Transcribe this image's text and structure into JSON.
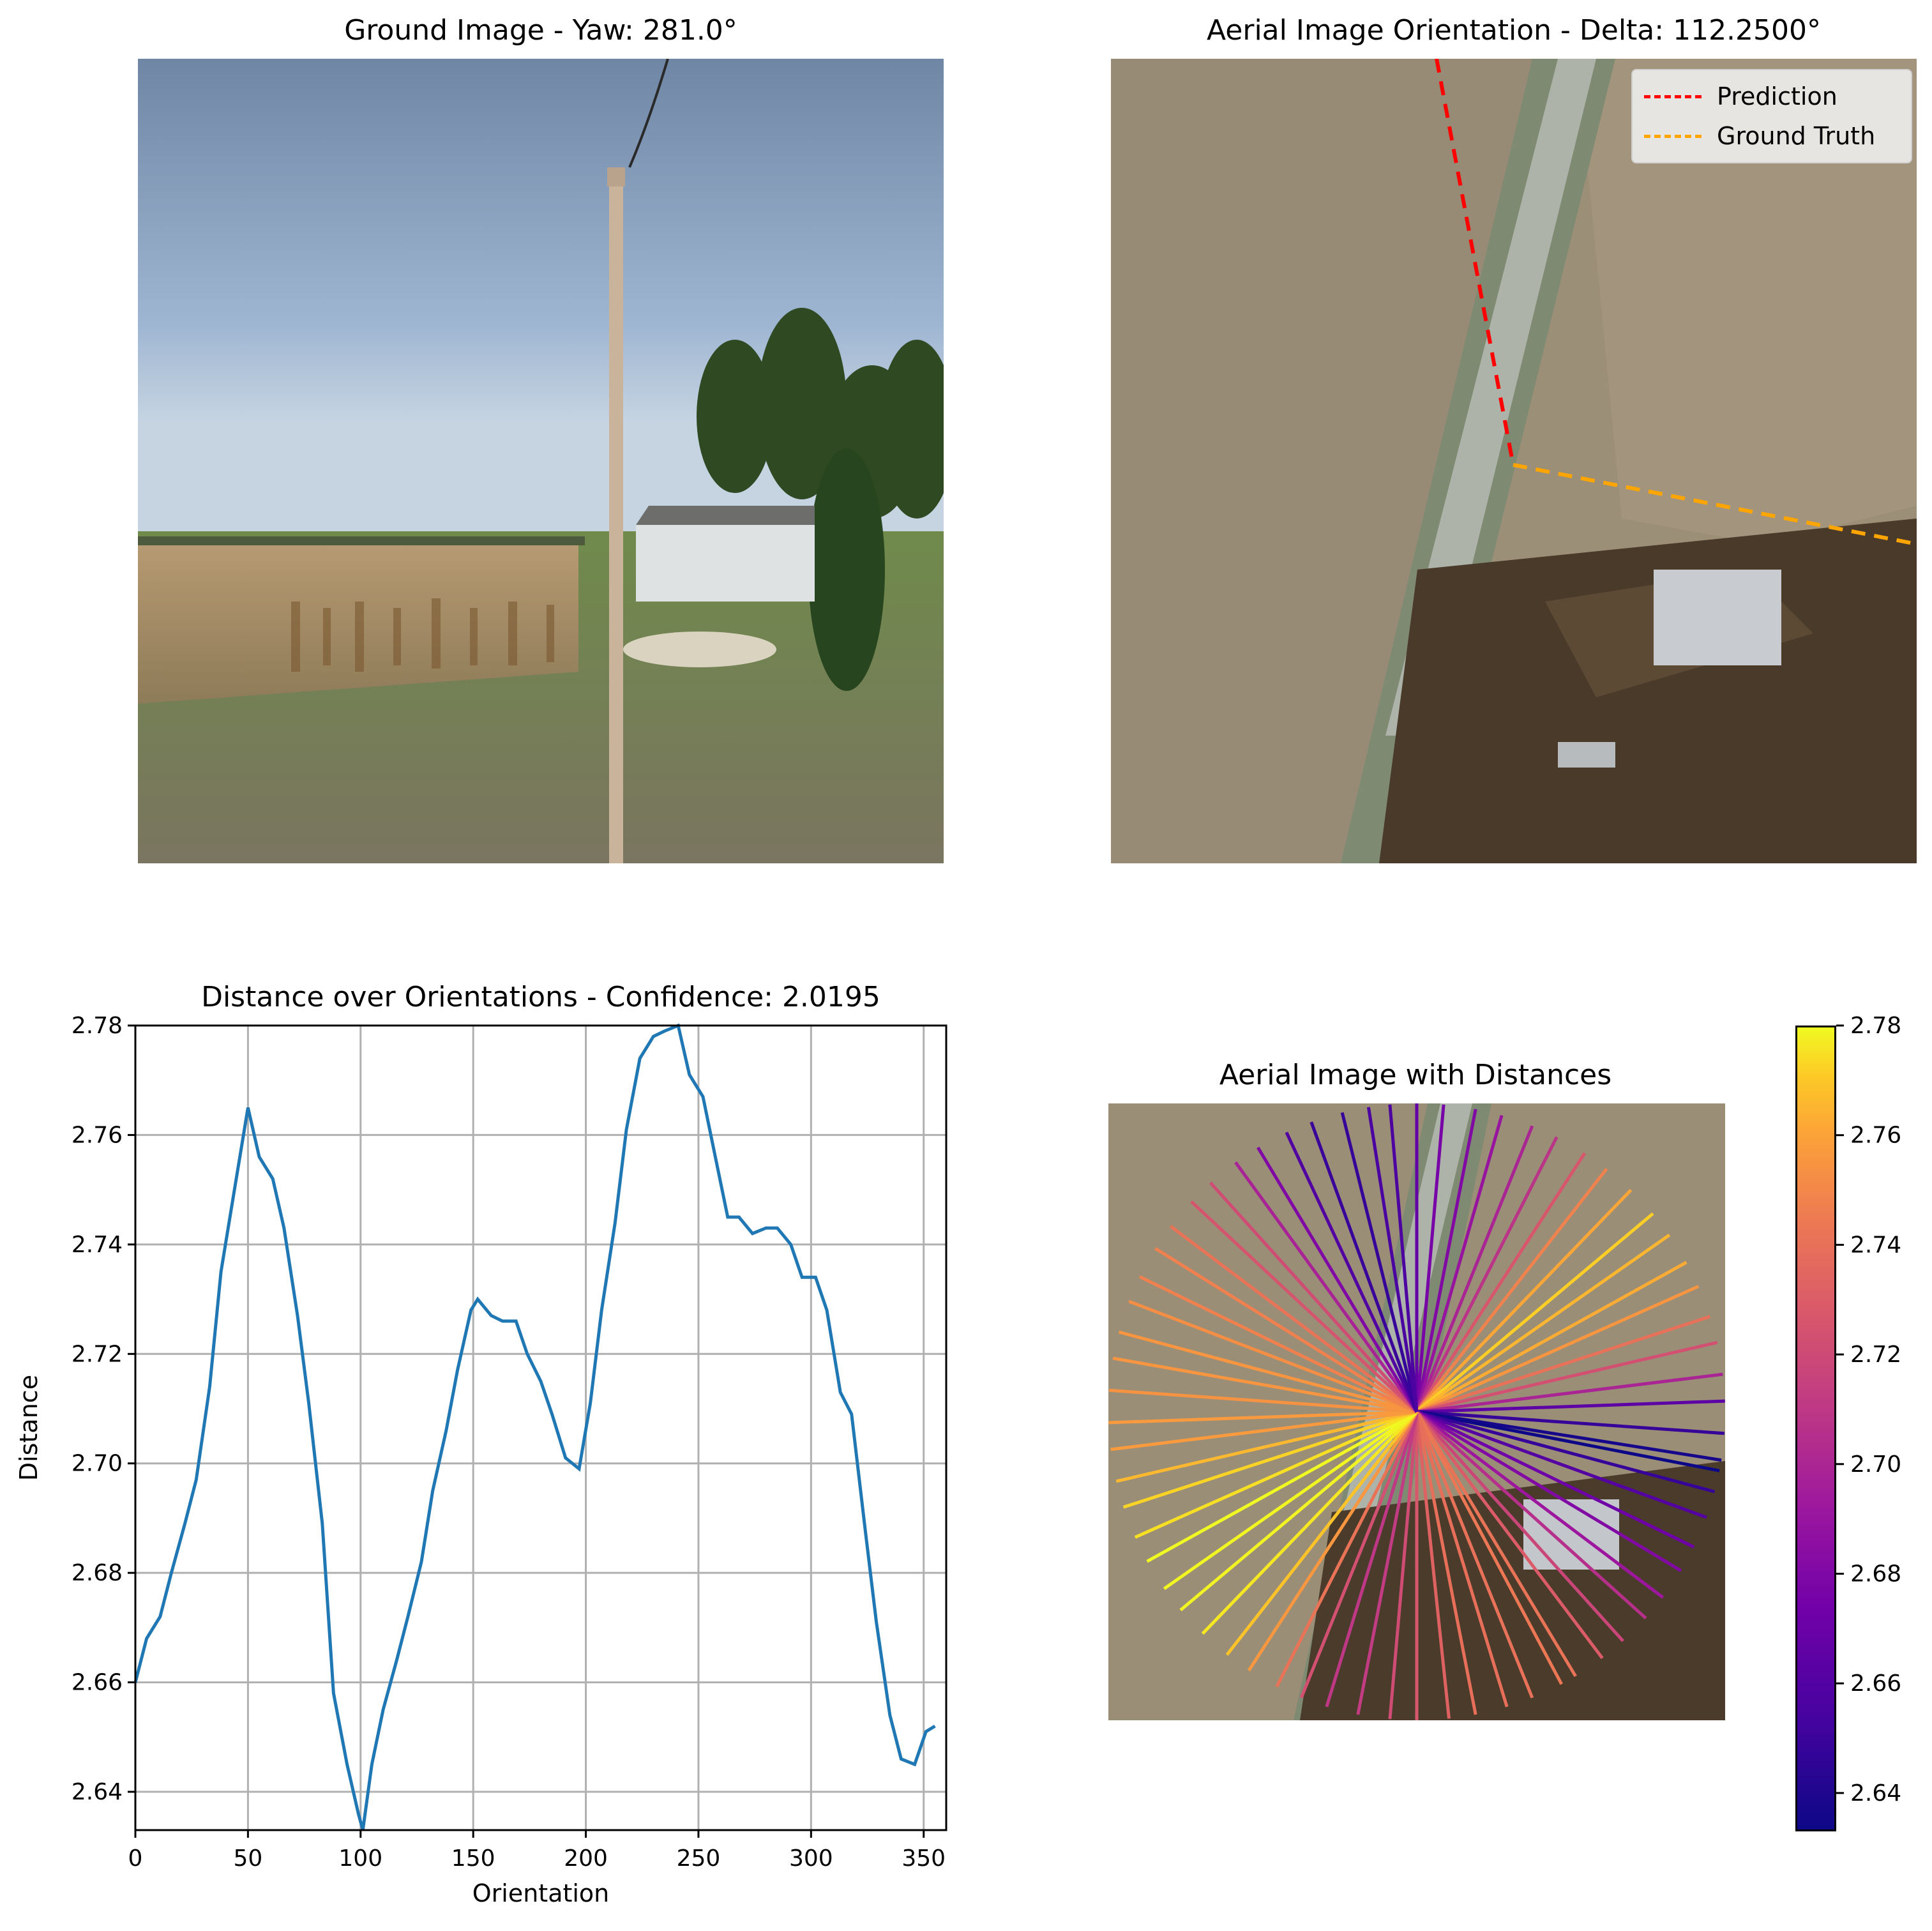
{
  "panels": {
    "ground": {
      "title": "Ground Image - Yaw: 281.0°"
    },
    "aerial": {
      "title": "Aerial Image Orientation - Delta: 112.2500°",
      "legend": [
        {
          "label": "Prediction",
          "color": "#ff0000"
        },
        {
          "label": "Ground Truth",
          "color": "#ffa500"
        }
      ]
    },
    "distances": {
      "title": "Aerial Image with Distances"
    }
  },
  "colors": {
    "line": "#1f77b4",
    "grid": "#b0b0b0",
    "prediction": "#ff0000",
    "ground_truth": "#ffa500"
  },
  "chart_data": [
    {
      "type": "line",
      "title": "Distance over Orientations - Confidence: 2.0195",
      "xlabel": "Orientation",
      "ylabel": "Distance",
      "xlim": [
        0,
        360
      ],
      "ylim": [
        2.633,
        2.78
      ],
      "grid": true,
      "xticks": [
        "0",
        "50",
        "100",
        "150",
        "200",
        "250",
        "300",
        "350"
      ],
      "yticks": [
        "2.64",
        "2.66",
        "2.68",
        "2.70",
        "2.72",
        "2.74",
        "2.76",
        "2.78"
      ],
      "series": [
        {
          "x": [
            0,
            5,
            11,
            16,
            22,
            27,
            33,
            38,
            44,
            50,
            55,
            61,
            66,
            72,
            77,
            83,
            88,
            94,
            99,
            101,
            105,
            110,
            116,
            121,
            127,
            132,
            138,
            143,
            149,
            152,
            158,
            163,
            169,
            174,
            180,
            185,
            191,
            197,
            202,
            207,
            213,
            218,
            224,
            230,
            235,
            241,
            246,
            252,
            257,
            263,
            268,
            274,
            280,
            285,
            291,
            296,
            302,
            307,
            313,
            318,
            324,
            329,
            335,
            340,
            346,
            351,
            355
          ],
          "y": [
            2.66,
            2.668,
            2.672,
            2.68,
            2.689,
            2.697,
            2.714,
            2.735,
            2.75,
            2.765,
            2.756,
            2.752,
            2.743,
            2.727,
            2.711,
            2.689,
            2.658,
            2.645,
            2.636,
            2.633,
            2.645,
            2.655,
            2.664,
            2.672,
            2.682,
            2.695,
            2.706,
            2.717,
            2.728,
            2.73,
            2.727,
            2.726,
            2.726,
            2.72,
            2.715,
            2.709,
            2.701,
            2.699,
            2.711,
            2.728,
            2.744,
            2.761,
            2.774,
            2.778,
            2.779,
            2.78,
            2.771,
            2.767,
            2.757,
            2.745,
            2.745,
            2.742,
            2.743,
            2.743,
            2.74,
            2.734,
            2.734,
            2.728,
            2.713,
            2.709,
            2.688,
            2.671,
            2.654,
            2.646,
            2.645,
            2.651,
            2.652
          ]
        }
      ]
    },
    {
      "type": "radial-lines",
      "title": "Aerial Image with Distances",
      "colorbar": {
        "colormap": "plasma",
        "range": [
          2.633,
          2.78
        ],
        "ticks": [
          "2.64",
          "2.66",
          "2.68",
          "2.70",
          "2.72",
          "2.74",
          "2.76",
          "2.78"
        ]
      }
    }
  ]
}
